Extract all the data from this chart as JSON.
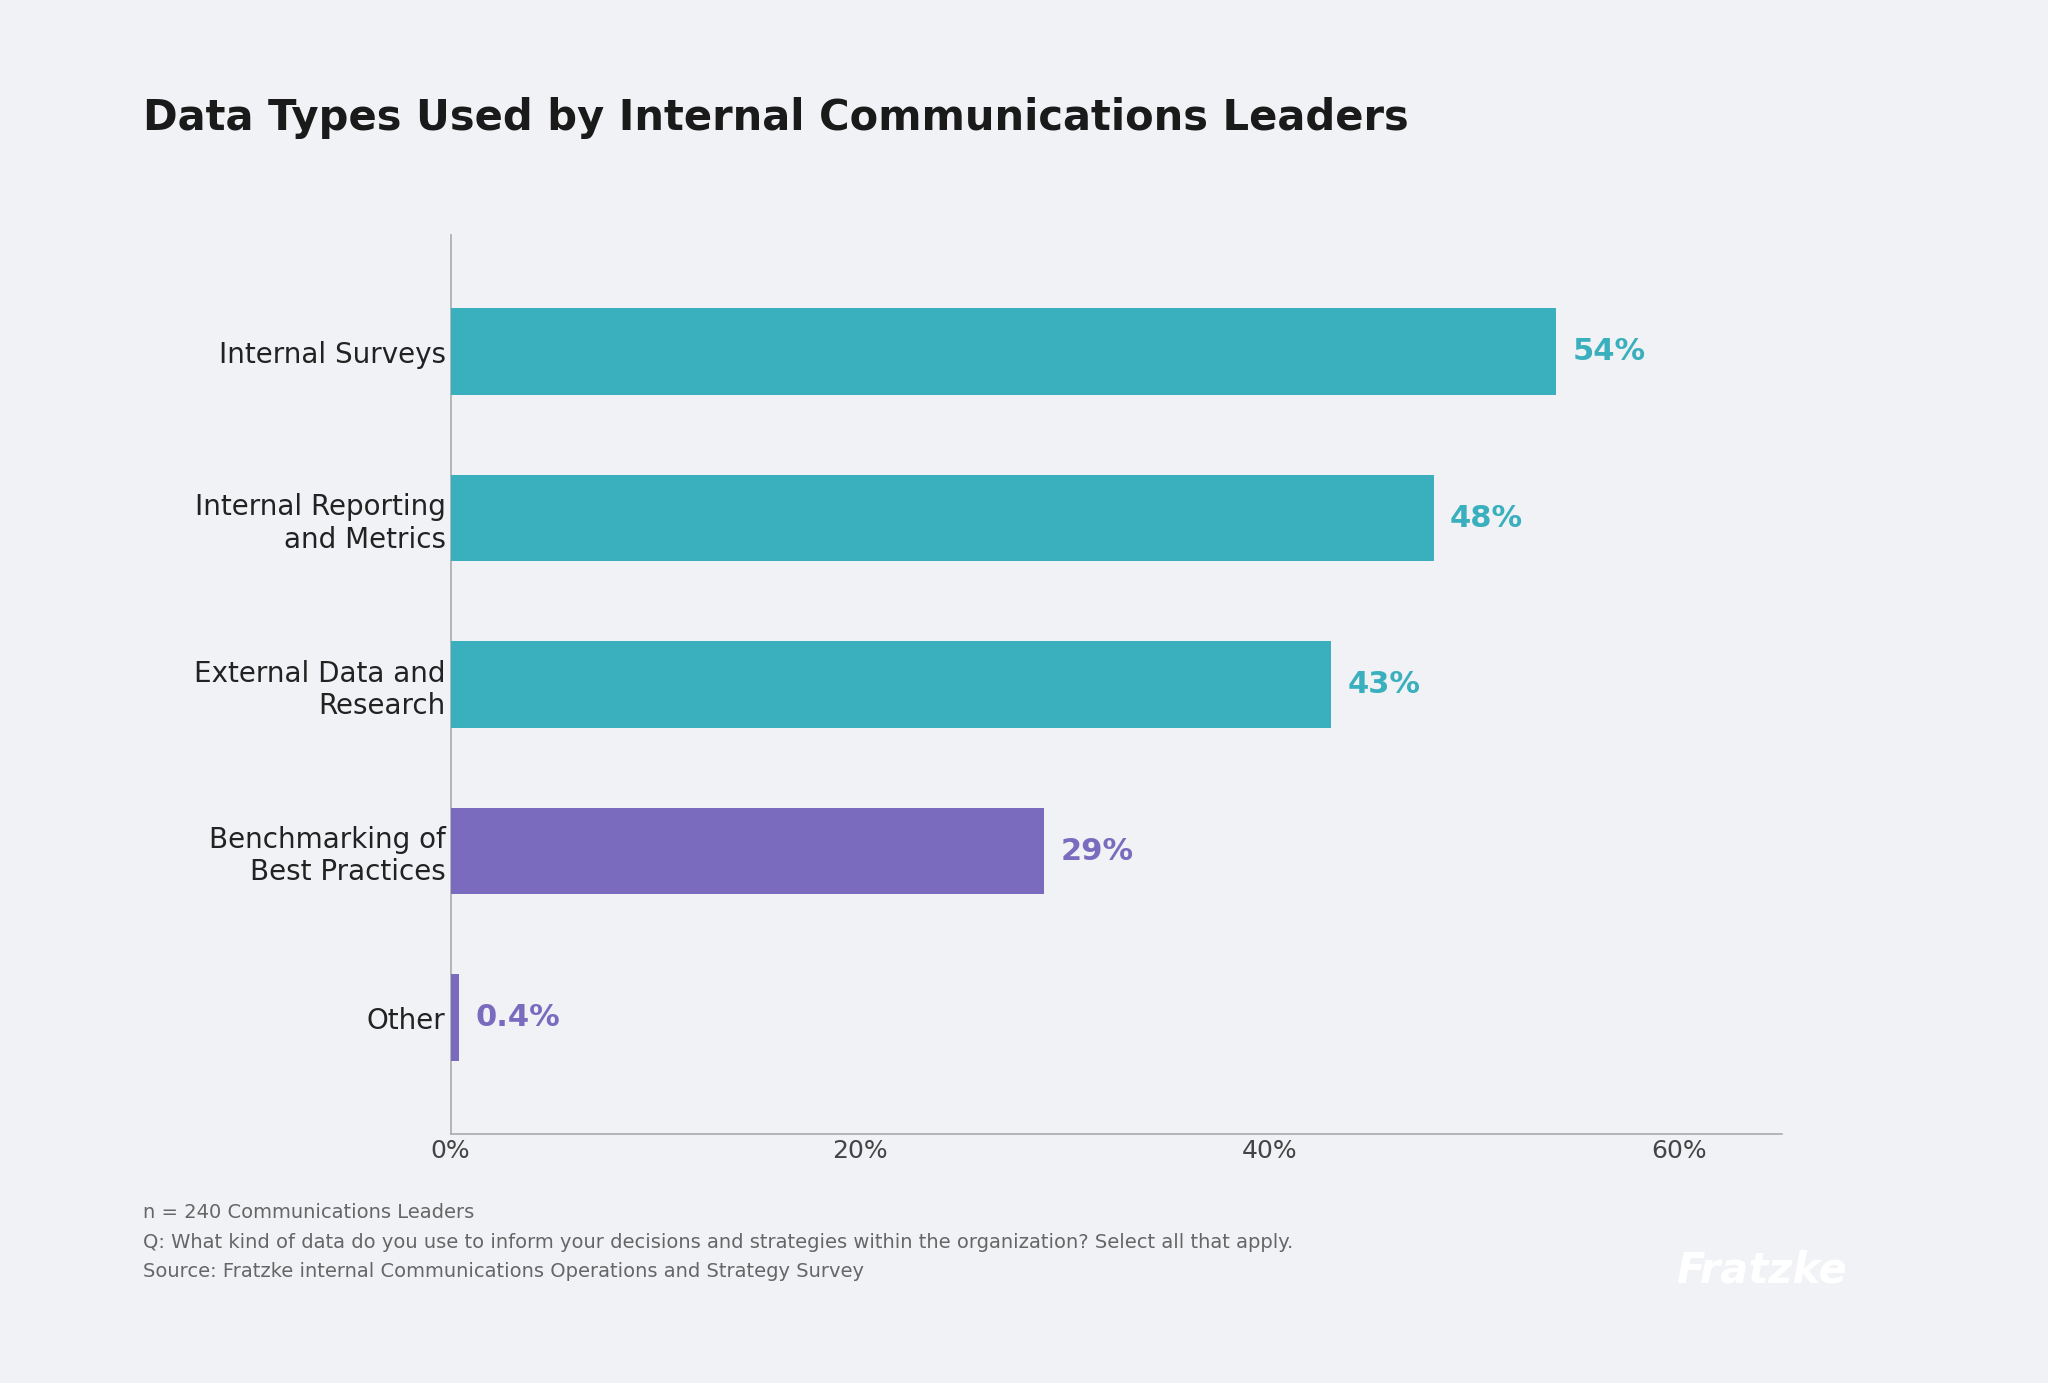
{
  "title": "Data Types Used by Internal Communications Leaders",
  "categories": [
    "Internal Surveys",
    "Internal Reporting\nand Metrics",
    "External Data and\nResearch",
    "Benchmarking of\nBest Practices",
    "Other"
  ],
  "values": [
    54,
    48,
    43,
    29,
    0.4
  ],
  "bar_colors": [
    "#3aafbe",
    "#3aafbe",
    "#3aafbe",
    "#7b6bbf",
    "#7b6bbf"
  ],
  "label_colors": [
    "#3aafbe",
    "#3aafbe",
    "#3aafbe",
    "#7b6bbf",
    "#7b6bbf"
  ],
  "labels": [
    "54%",
    "48%",
    "43%",
    "29%",
    "0.4%"
  ],
  "xlim": [
    0,
    65
  ],
  "xtick_values": [
    0,
    20,
    40,
    60
  ],
  "xtick_labels": [
    "0%",
    "20%",
    "40%",
    "60%"
  ],
  "background_color": "#f0f2f5",
  "title_fontsize": 30,
  "label_fontsize": 22,
  "tick_fontsize": 18,
  "category_fontsize": 20,
  "footer_text": "n = 240 Communications Leaders\nQ: What kind of data do you use to inform your decisions and strategies within the organization? Select all that apply.\nSource: Fratzke internal Communications Operations and Strategy Survey",
  "footer_fontsize": 14,
  "logo_text": "Fratzke",
  "logo_bg_color": "#5b57b2",
  "logo_text_color": "#ffffff",
  "logo_fontsize": 30
}
